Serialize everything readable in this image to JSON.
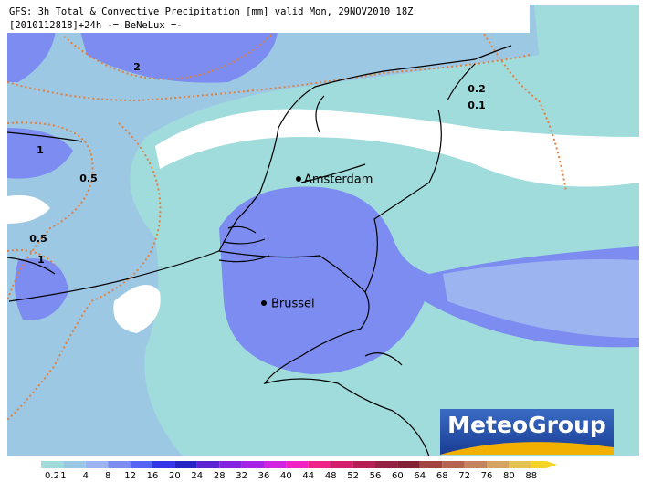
{
  "header": {
    "title": "GFS: 3h Total & Convective Precipitation [mm] valid Mon, 29NOV2010 18Z",
    "subtitle": "[2010112818]+24h -= BeNeLux =-"
  },
  "cities": [
    {
      "label": "Amsterdam"
    },
    {
      "label": "Brussel"
    }
  ],
  "contour_labels": [
    "2",
    "1",
    "0.5",
    "0.5",
    "1",
    "0.2",
    "0.1"
  ],
  "logo": "MeteoGroup",
  "legend": {
    "values": [
      0.2,
      1,
      4,
      8,
      12,
      16,
      20,
      24,
      28,
      32,
      36,
      40,
      44,
      48,
      52,
      56,
      60,
      64,
      68,
      72,
      76,
      80,
      88
    ],
    "colors": [
      "#a0dcdc",
      "#9cc8e4",
      "#9cb4f0",
      "#7c8cf0",
      "#5464f4",
      "#3434e8",
      "#2424c4",
      "#5c24d0",
      "#8424e0",
      "#a824e4",
      "#d024e0",
      "#f024c4",
      "#f02488",
      "#d4206c",
      "#b42054",
      "#942044",
      "#842034",
      "#a44440",
      "#b46450",
      "#c48460",
      "#d4a460",
      "#e4c450",
      "#f4d424"
    ]
  }
}
